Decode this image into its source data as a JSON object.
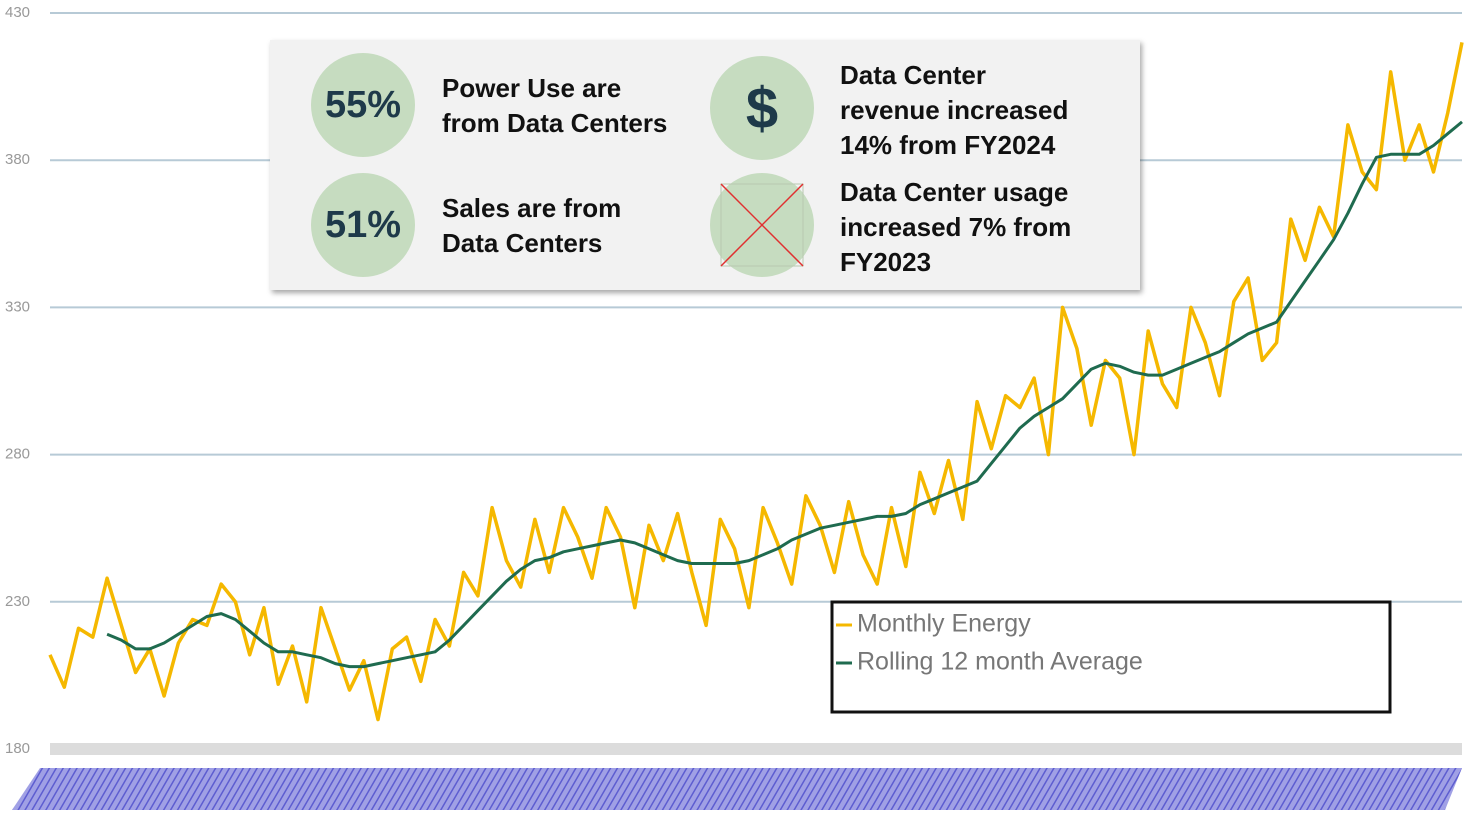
{
  "chart_data": {
    "type": "line",
    "ylim": [
      180,
      430
    ],
    "yticks": [
      180,
      230,
      280,
      330,
      380,
      430
    ],
    "xlim": [
      0,
      99
    ],
    "grid": true,
    "legend": "bottom-right",
    "series": [
      {
        "name": "Monthly Energy",
        "color": "#f5b800",
        "values": [
          212,
          201,
          221,
          218,
          238,
          222,
          206,
          214,
          198,
          216,
          224,
          222,
          236,
          230,
          212,
          228,
          202,
          215,
          196,
          228,
          214,
          200,
          210,
          190,
          214,
          218,
          203,
          224,
          215,
          240,
          232,
          262,
          244,
          235,
          258,
          240,
          262,
          252,
          238,
          262,
          252,
          228,
          256,
          244,
          260,
          240,
          222,
          258,
          248,
          228,
          262,
          250,
          236,
          266,
          256,
          240,
          264,
          246,
          236,
          262,
          242,
          274,
          260,
          278,
          258,
          298,
          282,
          300,
          296,
          306,
          280,
          330,
          316,
          290,
          312,
          306,
          280,
          322,
          304,
          296,
          330,
          318,
          300,
          332,
          340,
          312,
          318,
          360,
          346,
          364,
          354,
          392,
          376,
          370,
          410,
          380,
          392,
          376,
          396,
          420
        ]
      },
      {
        "name": "Rolling 12 month Average",
        "color": "#1f6b4f",
        "values": [
          null,
          null,
          null,
          null,
          219,
          217,
          214,
          214,
          216,
          219,
          222,
          225,
          226,
          224,
          220,
          216,
          213,
          213,
          212,
          211,
          209,
          208,
          208,
          209,
          210,
          211,
          212,
          213,
          217,
          222,
          227,
          232,
          237,
          241,
          244,
          245,
          247,
          248,
          249,
          250,
          251,
          250,
          248,
          246,
          244,
          243,
          243,
          243,
          243,
          244,
          246,
          248,
          251,
          253,
          255,
          256,
          257,
          258,
          259,
          259,
          260,
          263,
          265,
          267,
          269,
          271,
          277,
          283,
          289,
          293,
          296,
          299,
          304,
          309,
          311,
          310,
          308,
          307,
          307,
          309,
          311,
          313,
          315,
          318,
          321,
          323,
          325,
          332,
          339,
          346,
          353,
          362,
          372,
          381,
          382,
          382,
          382,
          385,
          389,
          393
        ]
      }
    ]
  },
  "overlay": {
    "stats": [
      {
        "figure": "55%",
        "lines": [
          "Power Use are",
          "from Data Centers"
        ]
      },
      {
        "figure": "51%",
        "lines": [
          "Sales are from",
          "Data Centers"
        ]
      },
      {
        "figure": "$",
        "lines": [
          "Data Center",
          "revenue increased",
          "14% from FY2024"
        ]
      },
      {
        "lines": [
          "Data Center usage",
          "increased 7% from",
          "FY2023"
        ]
      }
    ]
  }
}
